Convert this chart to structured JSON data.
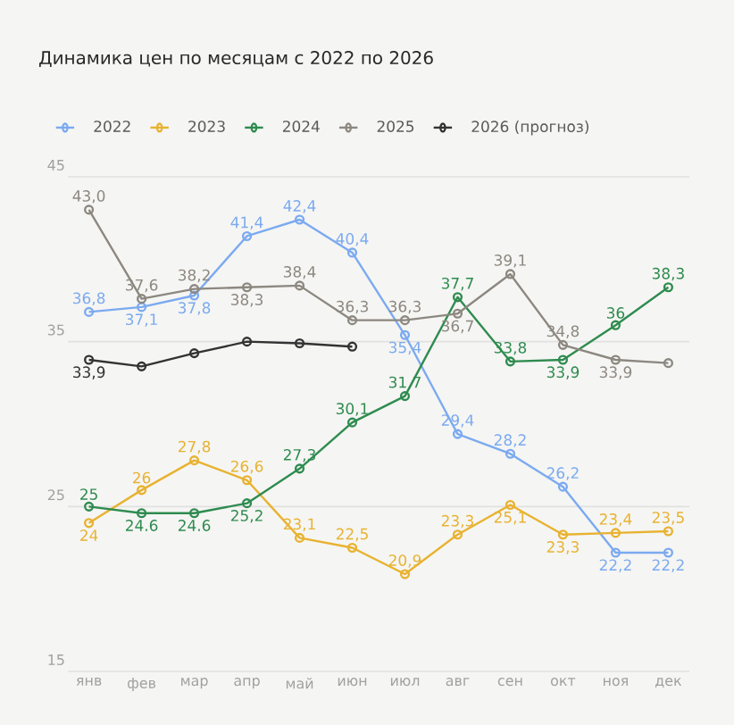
{
  "chart_data": {
    "type": "line",
    "title": "Динамика цен по месяцам с 2022 по 2026",
    "categories": [
      "янв",
      "фев",
      "мар",
      "апр",
      "май",
      "июн",
      "июл",
      "авг",
      "сен",
      "окт",
      "ноя",
      "дек"
    ],
    "series": [
      {
        "name": "2022",
        "color": "#7baaf0",
        "values": [
          36.8,
          37.1,
          37.8,
          41.4,
          42.4,
          40.4,
          35.4,
          29.4,
          28.2,
          26.2,
          22.2,
          22.2
        ],
        "value_labels": [
          "36,8",
          "37,1",
          "37,8",
          "41,4",
          "42,4",
          "40,4",
          "35,4",
          "29,4",
          "28,2",
          "26,2",
          "22,2",
          "22,2"
        ]
      },
      {
        "name": "2023",
        "color": "#e8b230",
        "values": [
          24,
          26,
          27.8,
          26.6,
          23.1,
          22.5,
          20.9,
          23.3,
          25.1,
          23.3,
          23.4,
          23.5
        ],
        "value_labels": [
          "24",
          "26",
          "27,8",
          "26,6",
          "23,1",
          "22,5",
          "20,9",
          "23,3",
          "25,1",
          "23,3",
          "23,4",
          "23,5"
        ]
      },
      {
        "name": "2024",
        "color": "#2e8b4f",
        "values": [
          25,
          24.6,
          24.6,
          25.2,
          27.3,
          30.1,
          31.7,
          37.7,
          33.8,
          33.9,
          36,
          38.3
        ],
        "value_labels": [
          "25",
          "24.6",
          "24.6",
          "25,2",
          "27,3",
          "30,1",
          "31,7",
          "37,7",
          "33,8",
          "33,9",
          "36",
          "38,3"
        ]
      },
      {
        "name": "2025",
        "color": "#8c8880",
        "values": [
          43.0,
          37.6,
          38.2,
          38.3,
          38.4,
          36.3,
          36.3,
          36.7,
          39.1,
          34.8,
          33.9,
          33.7
        ],
        "value_labels": [
          "43,0",
          "37,6",
          "38,2",
          "38,3",
          "38,4",
          "36,3",
          "36,3",
          "36,7",
          "39,1",
          "34,8",
          "33,9",
          null
        ]
      },
      {
        "name": "2026 (прогноз)",
        "color": "#333333",
        "values": [
          33.9,
          33.5,
          34.3,
          35.0,
          34.9,
          34.7,
          null,
          null,
          null,
          null,
          null,
          null
        ],
        "value_labels": [
          "33,9",
          null,
          null,
          null,
          null,
          null,
          null,
          null,
          null,
          null,
          null,
          null
        ]
      }
    ],
    "ylim": [
      15,
      45
    ],
    "yticks": [
      15,
      25,
      35,
      45
    ],
    "grid": "y",
    "legend": "top left",
    "marker": "circle",
    "line_style": "solid"
  }
}
